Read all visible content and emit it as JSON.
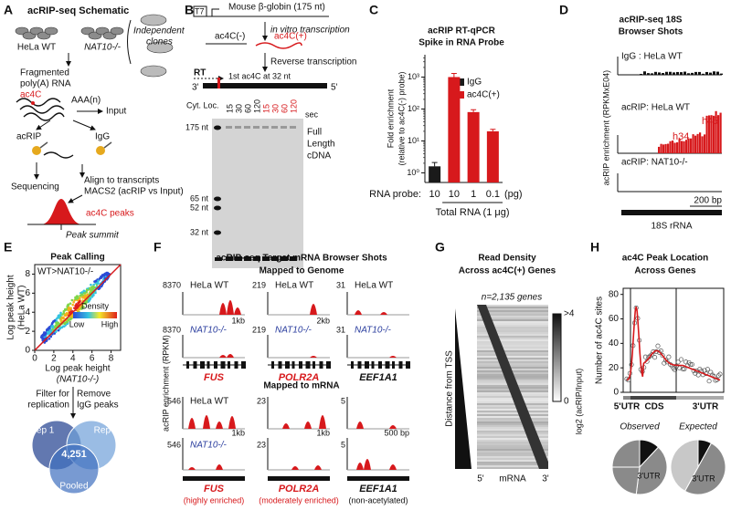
{
  "panels": {
    "a": {
      "label": "A",
      "title": "acRIP-seq Schematic",
      "wt": "HeLa WT",
      "ko": "NAT10-/-",
      "clones": [
        "Independent",
        "clones"
      ],
      "fragmented": [
        "Fragmented",
        "poly(A) RNA"
      ],
      "ac4c": "ac4C",
      "polya": "AAA(n)",
      "input": "Input",
      "acrip": "acRIP",
      "igg": "IgG",
      "sequencing": "Sequencing",
      "align": [
        "Align to transcripts",
        "MACS2 (acRIP vs Input)"
      ],
      "peaks": "ac4C peaks",
      "summit": "Peak summit"
    },
    "b": {
      "label": "B",
      "t7": "T7",
      "template": "Mouse β-globin (175 nt)",
      "ivt": "in vitro transcription",
      "minus": "ac4C(-)",
      "plus": "ac4C(+)",
      "rt_step": "Reverse transcription",
      "rt": "RT",
      "three": "3'",
      "site": "1st ac4C at 32 nt",
      "five": "5'",
      "loc": "Cyt. Loc.",
      "times": [
        "15",
        "30",
        "60",
        "120",
        "15",
        "30",
        "60",
        "120"
      ],
      "sec": "sec",
      "markers": [
        "175 nt",
        "65 nt",
        "52 nt",
        "32 nt"
      ],
      "full": [
        "Full",
        "Length",
        "cDNA"
      ]
    },
    "c": {
      "label": "C",
      "type": "bar",
      "title": [
        "acRIP RT-qPCR",
        "Spike in RNA Probe"
      ],
      "ylabel": [
        "Fold enrichment",
        "(relative to ac4C(-) probe)"
      ],
      "log": true,
      "ylim": [
        0.5,
        5000
      ],
      "yticks": [
        {
          "value": 1,
          "label": "10⁰"
        },
        {
          "value": 10,
          "label": "10¹"
        },
        {
          "value": 100,
          "label": "10²"
        },
        {
          "value": 1000,
          "label": "10³"
        }
      ],
      "probe": "RNA probe:",
      "categories": [
        "10",
        "10",
        "1",
        "0.1"
      ],
      "unit": "(pg)",
      "group": "Total RNA (1 μg)",
      "series": [
        {
          "name": "IgG",
          "color": "#1a1a1a",
          "values": [
            1.6,
            null,
            null,
            null
          ],
          "errors": [
            0.5,
            null,
            null,
            null
          ]
        },
        {
          "name": "ac4C(+)",
          "color": "#d7191c",
          "values": [
            null,
            1000,
            80,
            20
          ],
          "errors": [
            null,
            300,
            15,
            3
          ]
        }
      ]
    },
    "d": {
      "label": "D",
      "title": [
        "acRIP-seq 18S",
        "Browser Shots"
      ],
      "tracks": [
        "IgG : HeLa WT",
        "acRIP: HeLa WT",
        "acRIP: NAT10-/-"
      ],
      "helices": [
        "h34",
        "h45"
      ],
      "ylabel": "acRIP enrichment (RPKMxE04)",
      "scale": "200 bp",
      "gene": "18S rRNA"
    },
    "e": {
      "label": "E",
      "title": "Peak Calling",
      "note": "WT>NAT10-/-",
      "density": "Density",
      "low": "Low",
      "high": "High",
      "ylabel": [
        "Log peak height",
        "(HeLa WT)"
      ],
      "xlabel": [
        "Log peak height",
        "(NAT10-/-)"
      ],
      "xlim": [
        0,
        9
      ],
      "xticks": [
        0,
        2,
        4,
        6,
        8
      ],
      "ylim": [
        0,
        9
      ],
      "yticks": [
        0,
        2,
        4,
        6,
        8
      ],
      "filter": [
        "Filter for",
        "replication"
      ],
      "remove": [
        "Remove",
        "IgG peaks"
      ],
      "venn": [
        "Rep 1",
        "Rep 2",
        "Pooled"
      ],
      "overlap": "4,251"
    },
    "f": {
      "label": "F",
      "title": [
        "acRIP-seq Target mRNA Browser Shots",
        "Mapped to Genome"
      ],
      "mrna_title": "Mapped to mRNA",
      "ylabel": "acRIP enrichment (RPKM)",
      "wt": "HeLa WT",
      "ko": "NAT10-/-",
      "genes": [
        {
          "name": "FUS",
          "genome_max": 8370,
          "genome_scale": "1kb",
          "mrna_max": 546,
          "mrna_scale": "1kb",
          "class": "(highly enriched)"
        },
        {
          "name": "POLR2A",
          "genome_max": 219,
          "genome_scale": "2kb",
          "mrna_max": 23,
          "mrna_scale": "1kb",
          "class": "(moderately enriched)"
        },
        {
          "name": "EEF1A1",
          "genome_max": 31,
          "mrna_max": 5,
          "mrna_scale": "500 bp",
          "class": "(non-acetylated)"
        }
      ]
    },
    "g": {
      "label": "G",
      "title": [
        "Read Density",
        "Across ac4C(+) Genes"
      ],
      "n": "n=2,135 genes",
      "axis": "Distance from TSS",
      "cbar_max": ">4",
      "cbar_min": "0",
      "cbar_label": "log2 (acRIP/Input)",
      "x": [
        "5'",
        "mRNA",
        "3'"
      ]
    },
    "h": {
      "label": "H",
      "title": [
        "ac4C Peak Location",
        "Across Genes"
      ],
      "ylabel": "Number of ac4C sites",
      "ylim": [
        0,
        85
      ],
      "yticks": [
        0,
        20,
        40,
        60,
        80
      ],
      "regions": [
        "5'UTR",
        "CDS",
        "3'UTR"
      ],
      "pies": [
        "Observed",
        "Expected"
      ],
      "pie_label": "3'UTR"
    }
  }
}
